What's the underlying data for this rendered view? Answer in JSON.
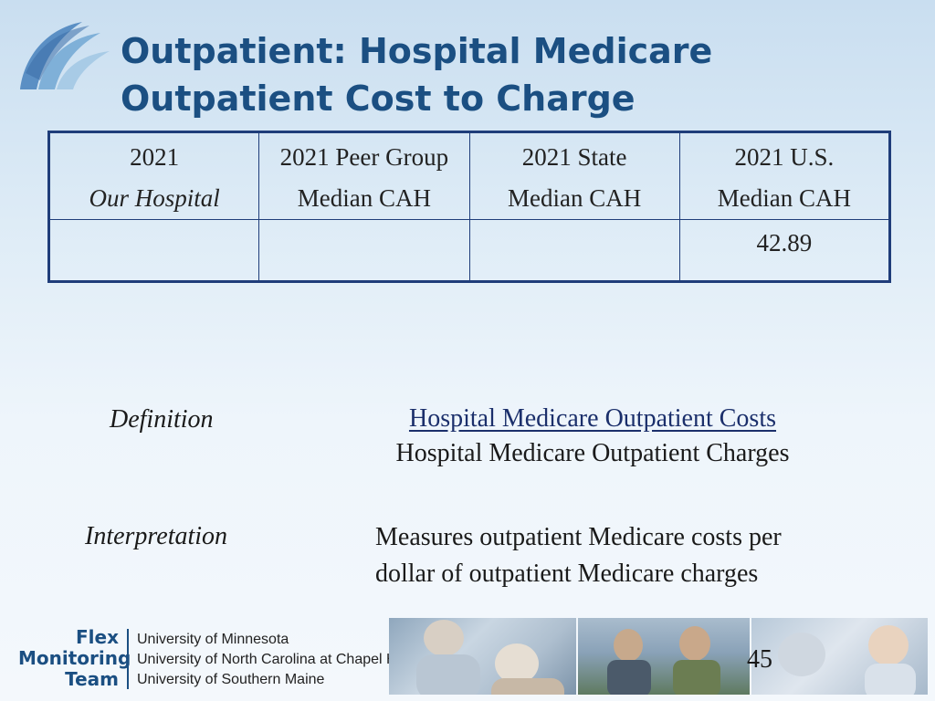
{
  "title": {
    "line1": "Outpatient:  Hospital Medicare",
    "line2": "Outpatient Cost to Charge"
  },
  "table": {
    "headers": [
      {
        "line1": "2021",
        "line2": "Our Hospital"
      },
      {
        "line1": "2021 Peer Group",
        "line2": "Median CAH"
      },
      {
        "line1": "2021 State",
        "line2": "Median CAH"
      },
      {
        "line1": "2021 U.S.",
        "line2": "Median CAH"
      }
    ],
    "values": [
      "",
      "",
      "",
      "42.89"
    ]
  },
  "definition": {
    "label": "Definition",
    "numerator": "Hospital Medicare Outpatient Costs",
    "denominator": "Hospital Medicare Outpatient Charges"
  },
  "interpretation": {
    "label": "Interpretation",
    "line1": "Measures outpatient Medicare costs per",
    "line2": "dollar of outpatient Medicare charges"
  },
  "footer": {
    "team": [
      "Flex",
      "Monitoring",
      "Team"
    ],
    "universities": [
      "University of Minnesota",
      "University of North Carolina at Chapel Hill",
      "University of Southern Maine"
    ],
    "page_number": "45"
  },
  "colors": {
    "title": "#1b4f82",
    "table_border": "#1f3d7a"
  }
}
